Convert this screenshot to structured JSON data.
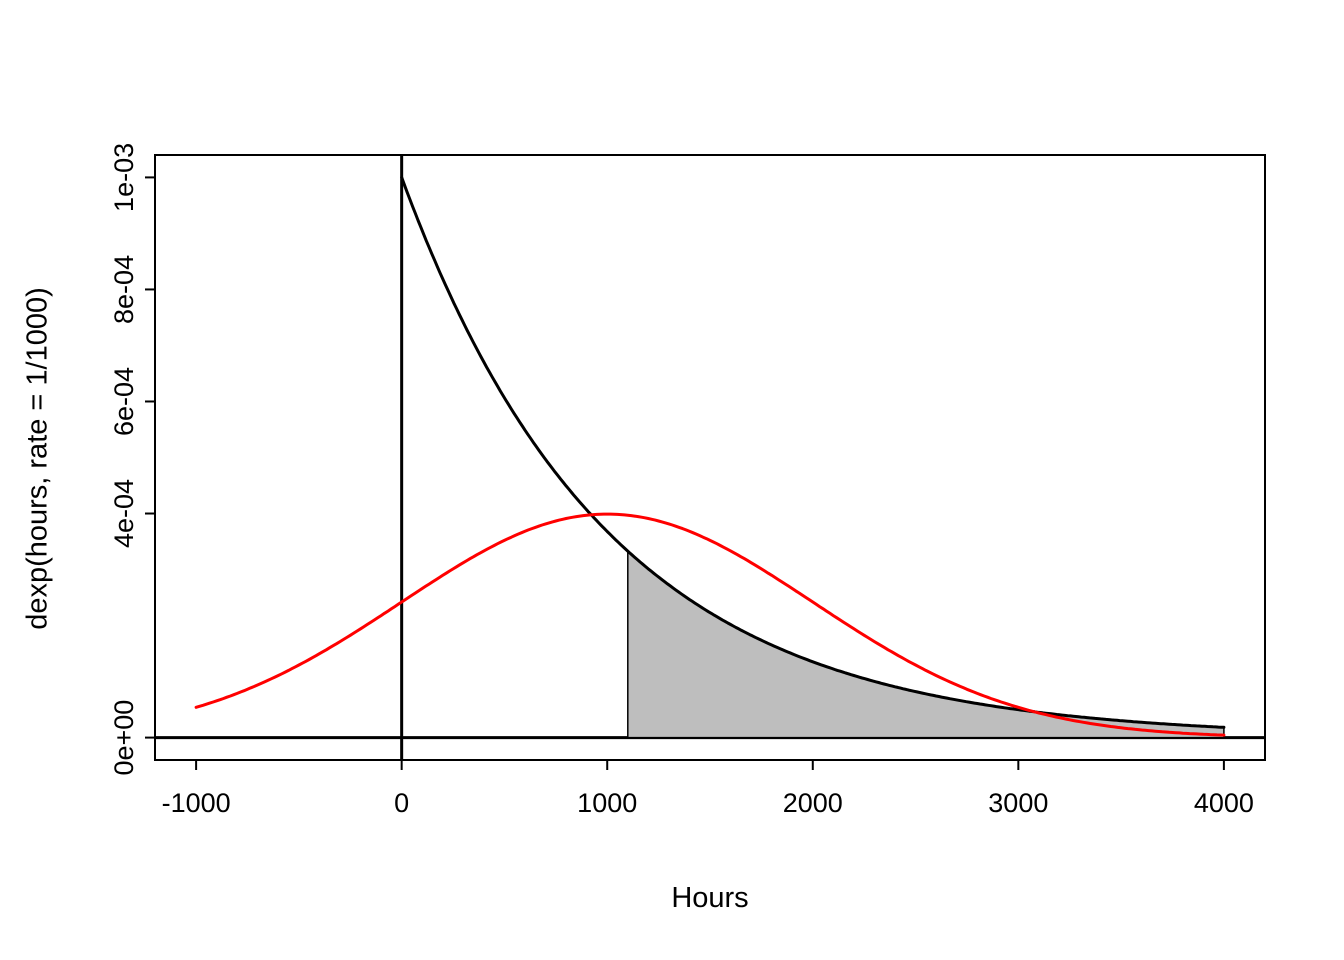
{
  "chart_data": {
    "type": "line",
    "title": "",
    "xlabel": "Hours",
    "ylabel": "dexp(hours, rate = 1/1000)",
    "xlim": [
      -1200,
      4200
    ],
    "ylim": [
      -4e-05,
      0.00104
    ],
    "grid": false,
    "legend": null,
    "background": "#ffffff",
    "x_ticks": {
      "values": [
        -1000,
        0,
        1000,
        2000,
        3000,
        4000
      ],
      "labels": [
        "-1000",
        "0",
        "1000",
        "2000",
        "3000",
        "4000"
      ]
    },
    "y_ticks": {
      "values": [
        0,
        0.0004,
        0.0006,
        0.0008,
        0.001
      ],
      "labels": [
        "0e+00",
        "4e-04",
        "6e-04",
        "8e-04",
        "1e-03"
      ]
    },
    "series": [
      {
        "name": "exponential-density-curve",
        "curve": "dexp",
        "rate": 0.001,
        "x_from": 0,
        "x_to": 4000,
        "peak_value": 0.001,
        "color": "#000000",
        "width": 3
      },
      {
        "name": "normal-density-curve",
        "curve": "dnorm",
        "mean": 1000,
        "sd": 1000,
        "x_from": -1000,
        "x_to": 4000,
        "peak_value": 0.0004,
        "color": "#ff0000",
        "width": 3
      }
    ],
    "shaded_region": {
      "description": "area under exponential density right of x = 1100",
      "curve": "dexp",
      "rate": 0.001,
      "x_from": 1100,
      "x_to": 4000,
      "fill": "#bebebe",
      "border": "#000000"
    },
    "reference_lines": [
      {
        "axis": "v",
        "at": 0,
        "color": "#000000"
      },
      {
        "axis": "h",
        "at": 0,
        "color": "#000000"
      }
    ]
  }
}
